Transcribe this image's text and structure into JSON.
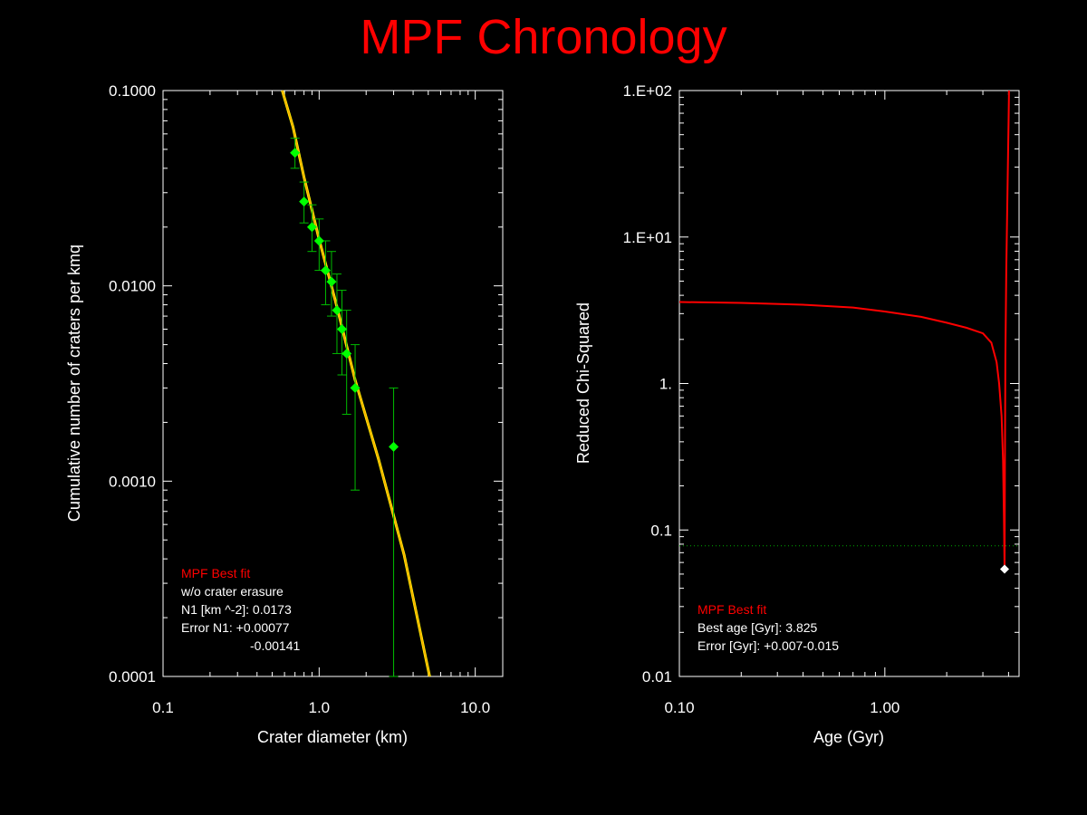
{
  "title": "MPF Chronology",
  "chart_data": [
    {
      "type": "scatter",
      "xscale": "log",
      "yscale": "log",
      "xlabel": "Crater diameter (km)",
      "ylabel": "Cumulative number of craters per kmq",
      "xlim": [
        0.1,
        15
      ],
      "ylim": [
        0.0001,
        0.1
      ],
      "xticks": [
        {
          "v": 0.1,
          "label": "0.1"
        },
        {
          "v": 1,
          "label": "1.0"
        },
        {
          "v": 10,
          "label": "10.0"
        }
      ],
      "yticks": [
        {
          "v": 0.1,
          "label": "0.1000"
        },
        {
          "v": 0.01,
          "label": "0.0100"
        },
        {
          "v": 0.001,
          "label": "0.0010"
        },
        {
          "v": 0.0001,
          "label": "0.0001"
        }
      ],
      "points": [
        {
          "x": 0.7,
          "y": 0.048,
          "ylo": 0.04,
          "yhi": 0.057
        },
        {
          "x": 0.8,
          "y": 0.027,
          "ylo": 0.021,
          "yhi": 0.034
        },
        {
          "x": 0.9,
          "y": 0.02,
          "ylo": 0.015,
          "yhi": 0.026
        },
        {
          "x": 1.0,
          "y": 0.017,
          "ylo": 0.012,
          "yhi": 0.022
        },
        {
          "x": 1.1,
          "y": 0.012,
          "ylo": 0.008,
          "yhi": 0.017
        },
        {
          "x": 1.2,
          "y": 0.0105,
          "ylo": 0.007,
          "yhi": 0.015
        },
        {
          "x": 1.3,
          "y": 0.0075,
          "ylo": 0.0045,
          "yhi": 0.0115
        },
        {
          "x": 1.4,
          "y": 0.006,
          "ylo": 0.0035,
          "yhi": 0.0095
        },
        {
          "x": 1.5,
          "y": 0.0045,
          "ylo": 0.0022,
          "yhi": 0.0075
        },
        {
          "x": 1.7,
          "y": 0.003,
          "ylo": 0.0009,
          "yhi": 0.005
        },
        {
          "x": 3.0,
          "y": 0.0015,
          "ylo": 0.0001,
          "yhi": 0.003
        }
      ],
      "fit_curve": [
        {
          "x": 0.58,
          "y": 0.1
        },
        {
          "x": 0.68,
          "y": 0.065
        },
        {
          "x": 0.8,
          "y": 0.036
        },
        {
          "x": 1.0,
          "y": 0.0173
        },
        {
          "x": 1.3,
          "y": 0.0078
        },
        {
          "x": 1.7,
          "y": 0.0033
        },
        {
          "x": 2.4,
          "y": 0.0013
        },
        {
          "x": 3.5,
          "y": 0.00042
        },
        {
          "x": 5.1,
          "y": 0.0001
        }
      ],
      "colors": {
        "points": "#00ff00",
        "errorbars": "#00bb00",
        "fit": "#ffa500",
        "fit_outline": "#ffff00",
        "axis": "#ffffff"
      },
      "legend": {
        "title": "MPF Best fit",
        "lines": [
          "w/o crater erasure",
          "N1 [km ^-2]: 0.0173",
          "Error N1: +0.00077",
          "-0.00141"
        ],
        "placement": "bottom-left"
      }
    },
    {
      "type": "line",
      "xscale": "log",
      "yscale": "log",
      "xlabel": "Age (Gyr)",
      "ylabel": "Reduced Chi-Squared",
      "xlim": [
        0.1,
        4.5
      ],
      "ylim": [
        0.01,
        100
      ],
      "xticks": [
        {
          "v": 0.1,
          "label": "0.10"
        },
        {
          "v": 1,
          "label": "1.00"
        }
      ],
      "yticks": [
        {
          "v": 100,
          "label": "1.E+02"
        },
        {
          "v": 10,
          "label": "1.E+01"
        },
        {
          "v": 1,
          "label": "1."
        },
        {
          "v": 0.1,
          "label": "0.1"
        },
        {
          "v": 0.01,
          "label": "0.01"
        }
      ],
      "curve": [
        {
          "x": 0.1,
          "y": 3.6
        },
        {
          "x": 0.2,
          "y": 3.55
        },
        {
          "x": 0.4,
          "y": 3.45
        },
        {
          "x": 0.7,
          "y": 3.3
        },
        {
          "x": 1.0,
          "y": 3.1
        },
        {
          "x": 1.5,
          "y": 2.85
        },
        {
          "x": 2.0,
          "y": 2.6
        },
        {
          "x": 2.5,
          "y": 2.4
        },
        {
          "x": 3.0,
          "y": 2.2
        },
        {
          "x": 3.3,
          "y": 1.9
        },
        {
          "x": 3.5,
          "y": 1.4
        },
        {
          "x": 3.6,
          "y": 1.0
        },
        {
          "x": 3.7,
          "y": 0.6
        },
        {
          "x": 3.76,
          "y": 0.3
        },
        {
          "x": 3.8,
          "y": 0.12
        },
        {
          "x": 3.825,
          "y": 0.054
        },
        {
          "x": 3.84,
          "y": 0.3
        },
        {
          "x": 3.86,
          "y": 1.5
        },
        {
          "x": 3.9,
          "y": 6.0
        },
        {
          "x": 3.95,
          "y": 20.0
        },
        {
          "x": 4.0,
          "y": 60.0
        },
        {
          "x": 4.02,
          "y": 100.0
        }
      ],
      "reference_line": {
        "y": 0.078
      },
      "best_point": {
        "x": 3.825,
        "y": 0.054
      },
      "colors": {
        "curve": "#ff0000",
        "reference": "#00aa00",
        "marker": "#ffffff",
        "axis": "#ffffff"
      },
      "legend": {
        "title": "MPF Best fit",
        "lines": [
          "Best age [Gyr]: 3.825",
          "Error [Gyr]: +0.007-0.015"
        ],
        "placement": "bottom-left"
      }
    }
  ]
}
